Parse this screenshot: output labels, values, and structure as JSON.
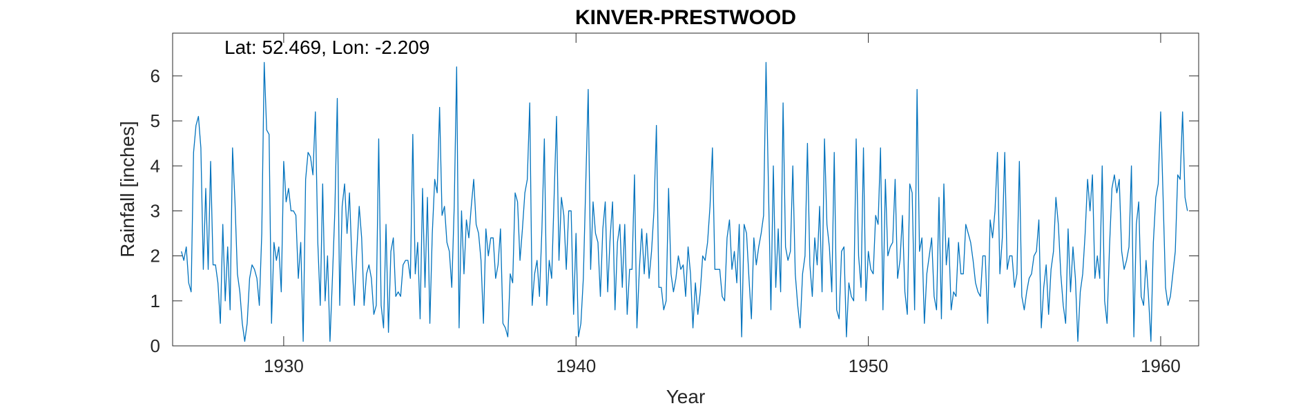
{
  "chart_data": {
    "type": "line",
    "title": "KINVER-PRESTWOOD",
    "xlabel": "Year",
    "ylabel": "Rainfall [inches]",
    "annotation": "Lat: 52.469, Lon: -2.209",
    "xlim": [
      1926.2,
      1961.3
    ],
    "ylim": [
      0,
      6.95
    ],
    "xticks": [
      1930,
      1940,
      1950,
      1960
    ],
    "xtick_labels": [
      "1930",
      "1940",
      "1950",
      "1960"
    ],
    "yticks": [
      0,
      1,
      2,
      3,
      4,
      5,
      6
    ],
    "ytick_labels": [
      "0",
      "1",
      "2",
      "3",
      "4",
      "5",
      "6"
    ],
    "grid": false,
    "line_color": "#0072BD",
    "series": [
      {
        "x_start": 1926.5,
        "x_step": 0.083333,
        "values": [
          2.1,
          1.9,
          2.2,
          1.4,
          1.2,
          4.3,
          4.9,
          5.1,
          4.4,
          1.7,
          3.5,
          1.7,
          4.1,
          1.8,
          1.8,
          1.4,
          0.5,
          2.7,
          1.0,
          2.2,
          0.8,
          4.4,
          3.2,
          1.6,
          1.2,
          0.5,
          0.1,
          0.5,
          1.5,
          1.8,
          1.7,
          1.5,
          0.9,
          2.5,
          6.3,
          4.8,
          4.7,
          0.5,
          2.3,
          1.9,
          2.2,
          1.2,
          4.1,
          3.2,
          3.5,
          3.0,
          3.0,
          2.9,
          1.5,
          2.3,
          0.1,
          3.7,
          4.3,
          4.2,
          3.8,
          5.2,
          2.3,
          0.9,
          3.6,
          1.0,
          2.0,
          0.1,
          1.5,
          3.0,
          5.5,
          0.9,
          3.1,
          3.6,
          2.5,
          3.4,
          1.9,
          0.9,
          2.1,
          3.1,
          2.4,
          0.9,
          1.6,
          1.8,
          1.5,
          0.7,
          0.9,
          4.6,
          0.9,
          0.4,
          2.7,
          0.3,
          2.1,
          2.4,
          1.1,
          1.2,
          1.1,
          1.8,
          1.9,
          1.9,
          1.5,
          4.7,
          1.6,
          2.3,
          0.6,
          3.5,
          1.3,
          3.3,
          0.5,
          2.5,
          3.7,
          3.4,
          5.3,
          2.9,
          3.1,
          2.3,
          2.1,
          1.3,
          3.1,
          6.2,
          0.4,
          3.0,
          1.6,
          2.8,
          2.4,
          3.1,
          3.7,
          2.7,
          2.5,
          1.9,
          0.5,
          2.6,
          2.0,
          2.4,
          2.4,
          1.5,
          1.8,
          2.6,
          0.5,
          0.4,
          0.2,
          1.6,
          1.4,
          3.4,
          3.2,
          1.9,
          2.6,
          3.4,
          3.7,
          5.4,
          0.9,
          1.6,
          1.9,
          1.1,
          2.6,
          4.6,
          0.9,
          1.9,
          1.5,
          3.3,
          5.1,
          1.9,
          3.3,
          2.9,
          1.7,
          3.0,
          3.0,
          0.7,
          2.5,
          0.2,
          0.5,
          1.5,
          3.6,
          5.7,
          1.7,
          3.2,
          2.5,
          2.3,
          1.1,
          2.6,
          3.2,
          1.2,
          2.4,
          3.2,
          0.8,
          2.3,
          2.7,
          1.3,
          2.7,
          0.7,
          1.7,
          1.7,
          3.8,
          0.4,
          1.7,
          2.6,
          1.6,
          2.5,
          1.5,
          2.1,
          3.0,
          4.9,
          1.3,
          1.3,
          0.8,
          1.0,
          3.5,
          1.6,
          1.2,
          1.5,
          2.0,
          1.7,
          1.8,
          1.1,
          2.2,
          1.6,
          0.4,
          1.4,
          0.7,
          1.2,
          2.0,
          1.9,
          2.3,
          3.1,
          4.4,
          1.7,
          1.7,
          1.7,
          1.1,
          1.0,
          2.4,
          2.8,
          1.7,
          2.1,
          1.4,
          2.7,
          0.2,
          2.7,
          2.5,
          1.5,
          0.6,
          2.4,
          1.8,
          2.2,
          2.5,
          2.9,
          6.3,
          3.5,
          0.8,
          4.0,
          1.3,
          2.6,
          1.2,
          5.4,
          2.2,
          1.9,
          2.1,
          4.0,
          1.6,
          0.9,
          0.4,
          1.6,
          2.0,
          4.5,
          1.8,
          1.1,
          2.4,
          1.8,
          3.1,
          1.2,
          4.6,
          2.7,
          2.2,
          1.2,
          4.3,
          0.8,
          0.6,
          2.1,
          2.2,
          0.2,
          1.4,
          1.1,
          1.0,
          4.6,
          2.0,
          1.3,
          4.4,
          1.0,
          2.1,
          1.7,
          1.6,
          2.9,
          2.7,
          4.4,
          0.8,
          3.7,
          2.0,
          2.2,
          2.3,
          3.7,
          1.5,
          1.9,
          2.9,
          1.2,
          0.7,
          3.6,
          3.4,
          0.8,
          5.7,
          2.1,
          2.4,
          0.5,
          1.6,
          2.0,
          2.4,
          1.1,
          0.8,
          3.3,
          0.6,
          3.6,
          1.8,
          2.4,
          0.8,
          1.2,
          1.1,
          2.3,
          1.6,
          1.6,
          2.7,
          2.5,
          2.3,
          1.9,
          1.4,
          1.2,
          1.1,
          2.0,
          2.0,
          0.5,
          2.8,
          2.4,
          3.0,
          4.3,
          1.6,
          2.4,
          4.3,
          1.7,
          2.0,
          2.0,
          1.3,
          1.6,
          4.1,
          1.1,
          0.8,
          1.2,
          1.5,
          1.6,
          2.0,
          2.1,
          2.8,
          0.4,
          1.3,
          1.8,
          0.7,
          1.7,
          2.1,
          3.3,
          2.7,
          1.6,
          0.9,
          0.5,
          2.6,
          1.2,
          2.2,
          1.5,
          0.1,
          1.2,
          1.6,
          2.5,
          3.7,
          3.0,
          3.8,
          1.5,
          2.0,
          1.5,
          4.0,
          1.0,
          0.5,
          2.2,
          3.5,
          3.8,
          3.4,
          3.7,
          2.1,
          1.7,
          1.9,
          2.2,
          4.0,
          0.2,
          2.7,
          3.2,
          1.1,
          0.9,
          1.9,
          1.1,
          0.1,
          2.3,
          3.3,
          3.6,
          5.2,
          3.3,
          1.3,
          0.9,
          1.1,
          1.6,
          2.1,
          3.8,
          3.7,
          5.2,
          3.3,
          3.0
        ]
      }
    ]
  }
}
